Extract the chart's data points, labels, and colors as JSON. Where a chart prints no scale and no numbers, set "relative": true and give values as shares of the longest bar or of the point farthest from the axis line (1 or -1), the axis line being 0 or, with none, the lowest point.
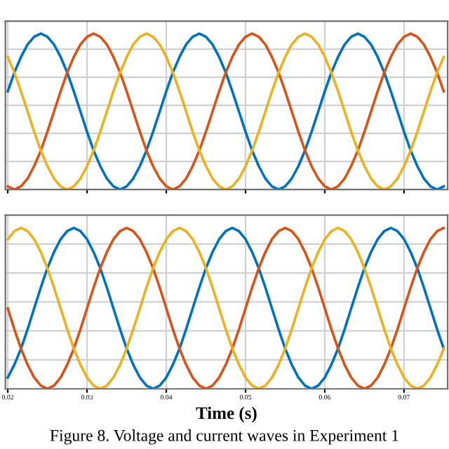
{
  "chart_data": [
    {
      "type": "line",
      "relative": true,
      "tick_labels": false,
      "grid": true,
      "xlim": [
        0.0197,
        0.0755
      ],
      "xticks": [
        0.02,
        0.03,
        0.04,
        0.05,
        0.06,
        0.07
      ],
      "x": [
        0.02,
        0.02083,
        0.02167,
        0.0225,
        0.02333,
        0.02417,
        0.025,
        0.02583,
        0.02667,
        0.0275,
        0.02833,
        0.02917,
        0.03,
        0.03083,
        0.03167,
        0.0325,
        0.03333,
        0.03417,
        0.035,
        0.03583,
        0.03667,
        0.0375,
        0.03833,
        0.03917,
        0.04,
        0.04083,
        0.04167,
        0.0425,
        0.04333,
        0.04417,
        0.045,
        0.04583,
        0.04667,
        0.0475,
        0.04833,
        0.04917,
        0.05,
        0.05083,
        0.05167,
        0.0525,
        0.05333,
        0.05417,
        0.055,
        0.05583,
        0.05667,
        0.0575,
        0.05833,
        0.05917,
        0.06,
        0.06083,
        0.06167,
        0.0625,
        0.06333,
        0.06417,
        0.065,
        0.06583,
        0.06667,
        0.0675,
        0.06833,
        0.06917,
        0.07,
        0.07083,
        0.07167,
        0.0725,
        0.07333,
        0.07417,
        0.075
      ],
      "series": [
        {
          "color": "#0072bd",
          "values": [
            0.63,
            0.75,
            0.85,
            0.93,
            0.98,
            1,
            0.98,
            0.93,
            0.85,
            0.75,
            0.63,
            0.5,
            0.37,
            0.25,
            0.15,
            0.07,
            0.02,
            0,
            0.02,
            0.07,
            0.15,
            0.25,
            0.37,
            0.5,
            0.63,
            0.75,
            0.85,
            0.93,
            0.98,
            1,
            0.98,
            0.93,
            0.85,
            0.75,
            0.63,
            0.5,
            0.37,
            0.25,
            0.15,
            0.07,
            0.02,
            0,
            0.02,
            0.07,
            0.15,
            0.25,
            0.37,
            0.5,
            0.63,
            0.75,
            0.85,
            0.93,
            0.98,
            1,
            0.98,
            0.93,
            0.85,
            0.75,
            0.63,
            0.5,
            0.37,
            0.25,
            0.15,
            0.07,
            0.02,
            0,
            0.02
          ]
        },
        {
          "color": "#d95319",
          "values": [
            0.02,
            0,
            0.02,
            0.07,
            0.15,
            0.25,
            0.37,
            0.5,
            0.63,
            0.75,
            0.85,
            0.93,
            0.98,
            1,
            0.98,
            0.93,
            0.85,
            0.75,
            0.63,
            0.5,
            0.37,
            0.25,
            0.15,
            0.07,
            0.02,
            0,
            0.02,
            0.07,
            0.15,
            0.25,
            0.37,
            0.5,
            0.63,
            0.75,
            0.85,
            0.93,
            0.98,
            1,
            0.98,
            0.93,
            0.85,
            0.75,
            0.63,
            0.5,
            0.37,
            0.25,
            0.15,
            0.07,
            0.02,
            0,
            0.02,
            0.07,
            0.15,
            0.25,
            0.37,
            0.5,
            0.63,
            0.75,
            0.85,
            0.93,
            0.98,
            1,
            0.98,
            0.93,
            0.85,
            0.75,
            0.63
          ]
        },
        {
          "color": "#edb120",
          "values": [
            0.85,
            0.75,
            0.63,
            0.5,
            0.37,
            0.25,
            0.15,
            0.07,
            0.02,
            0,
            0.02,
            0.07,
            0.15,
            0.25,
            0.37,
            0.5,
            0.63,
            0.75,
            0.85,
            0.93,
            0.98,
            1,
            0.98,
            0.93,
            0.85,
            0.75,
            0.63,
            0.5,
            0.37,
            0.25,
            0.15,
            0.07,
            0.02,
            0,
            0.02,
            0.07,
            0.15,
            0.25,
            0.37,
            0.5,
            0.63,
            0.75,
            0.85,
            0.93,
            0.98,
            1,
            0.98,
            0.93,
            0.85,
            0.75,
            0.63,
            0.5,
            0.37,
            0.25,
            0.15,
            0.07,
            0.02,
            0,
            0.02,
            0.07,
            0.15,
            0.25,
            0.37,
            0.5,
            0.63,
            0.75,
            0.85
          ]
        }
      ]
    },
    {
      "type": "line",
      "relative": true,
      "tick_labels": "x",
      "grid": true,
      "xlim": [
        0.0197,
        0.0755
      ],
      "xticks": [
        0.02,
        0.03,
        0.04,
        0.05,
        0.06,
        0.07
      ],
      "xlabel": "Time (s)",
      "annotations": [
        "Figure 8. Voltage and current waves in Experiment 1"
      ],
      "x": [
        0.02,
        0.02083,
        0.02167,
        0.0225,
        0.02333,
        0.02417,
        0.025,
        0.02583,
        0.02667,
        0.0275,
        0.02833,
        0.02917,
        0.03,
        0.03083,
        0.03167,
        0.0325,
        0.03333,
        0.03417,
        0.035,
        0.03583,
        0.03667,
        0.0375,
        0.03833,
        0.03917,
        0.04,
        0.04083,
        0.04167,
        0.0425,
        0.04333,
        0.04417,
        0.045,
        0.04583,
        0.04667,
        0.0475,
        0.04833,
        0.04917,
        0.05,
        0.05083,
        0.05167,
        0.0525,
        0.05333,
        0.05417,
        0.055,
        0.05583,
        0.05667,
        0.0575,
        0.05833,
        0.05917,
        0.06,
        0.06083,
        0.06167,
        0.0625,
        0.06333,
        0.06417,
        0.065,
        0.06583,
        0.06667,
        0.0675,
        0.06833,
        0.06917,
        0.07,
        0.07083,
        0.07167,
        0.0725,
        0.07333,
        0.07417,
        0.075
      ],
      "series": [
        {
          "color": "#0072bd",
          "values": [
            0.07,
            0.15,
            0.25,
            0.37,
            0.5,
            0.63,
            0.75,
            0.85,
            0.93,
            0.98,
            1,
            0.98,
            0.93,
            0.85,
            0.75,
            0.63,
            0.5,
            0.37,
            0.25,
            0.15,
            0.07,
            0.02,
            0,
            0.02,
            0.07,
            0.15,
            0.25,
            0.37,
            0.5,
            0.63,
            0.75,
            0.85,
            0.93,
            0.98,
            1,
            0.98,
            0.93,
            0.85,
            0.75,
            0.63,
            0.5,
            0.37,
            0.25,
            0.15,
            0.07,
            0.02,
            0,
            0.02,
            0.07,
            0.15,
            0.25,
            0.37,
            0.5,
            0.63,
            0.75,
            0.85,
            0.93,
            0.98,
            1,
            0.98,
            0.93,
            0.85,
            0.75,
            0.63,
            0.5,
            0.37,
            0.25
          ]
        },
        {
          "color": "#d95319",
          "values": [
            0.5,
            0.37,
            0.25,
            0.15,
            0.07,
            0.02,
            0,
            0.02,
            0.07,
            0.15,
            0.25,
            0.37,
            0.5,
            0.63,
            0.75,
            0.85,
            0.93,
            0.98,
            1,
            0.98,
            0.93,
            0.85,
            0.75,
            0.63,
            0.5,
            0.37,
            0.25,
            0.15,
            0.07,
            0.02,
            0,
            0.02,
            0.07,
            0.15,
            0.25,
            0.37,
            0.5,
            0.63,
            0.75,
            0.85,
            0.93,
            0.98,
            1,
            0.98,
            0.93,
            0.85,
            0.75,
            0.63,
            0.5,
            0.37,
            0.25,
            0.15,
            0.07,
            0.02,
            0,
            0.02,
            0.07,
            0.15,
            0.25,
            0.37,
            0.5,
            0.63,
            0.75,
            0.85,
            0.93,
            0.98,
            1
          ]
        },
        {
          "color": "#edb120",
          "values": [
            0.93,
            0.98,
            1,
            0.98,
            0.93,
            0.85,
            0.75,
            0.63,
            0.5,
            0.37,
            0.25,
            0.15,
            0.07,
            0.02,
            0,
            0.02,
            0.07,
            0.15,
            0.25,
            0.37,
            0.5,
            0.63,
            0.75,
            0.85,
            0.93,
            0.98,
            1,
            0.98,
            0.93,
            0.85,
            0.75,
            0.63,
            0.5,
            0.37,
            0.25,
            0.15,
            0.07,
            0.02,
            0,
            0.02,
            0.07,
            0.15,
            0.25,
            0.37,
            0.5,
            0.63,
            0.75,
            0.85,
            0.93,
            0.98,
            1,
            0.98,
            0.93,
            0.85,
            0.75,
            0.63,
            0.5,
            0.37,
            0.25,
            0.15,
            0.07,
            0.02,
            0,
            0.02,
            0.07,
            0.15,
            0.25
          ]
        }
      ]
    }
  ]
}
